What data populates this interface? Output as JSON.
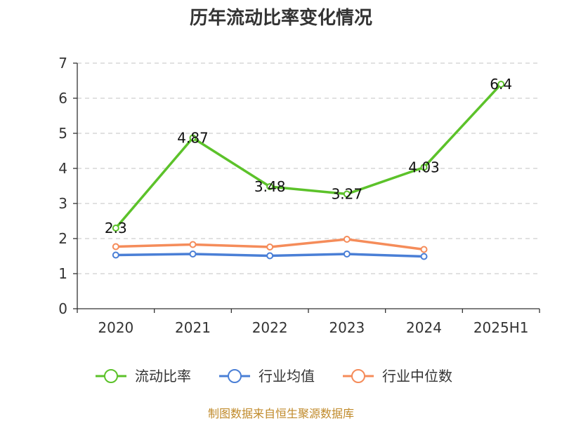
{
  "chart_data": {
    "type": "line",
    "title": "历年流动比率变化情况",
    "categories": [
      "2020",
      "2021",
      "2022",
      "2023",
      "2024",
      "2025H1"
    ],
    "ylim": [
      0,
      7
    ],
    "yticks": [
      0,
      1,
      2,
      3,
      4,
      5,
      6,
      7
    ],
    "grid": true,
    "legend_position": "bottom",
    "series": [
      {
        "name": "流动比率",
        "color": "#5cc22a",
        "values": [
          2.3,
          4.87,
          3.48,
          3.27,
          4.03,
          6.4
        ],
        "labels": [
          "2.3",
          "4.87",
          "3.48",
          "3.27",
          "4.03",
          "6.4"
        ]
      },
      {
        "name": "行业均值",
        "color": "#4a7fd6",
        "values": [
          1.53,
          1.56,
          1.51,
          1.56,
          1.49,
          null
        ]
      },
      {
        "name": "行业中位数",
        "color": "#f58c5a",
        "values": [
          1.77,
          1.83,
          1.76,
          1.98,
          1.69,
          null
        ]
      }
    ]
  },
  "source": "制图数据来自恒生聚源数据库"
}
